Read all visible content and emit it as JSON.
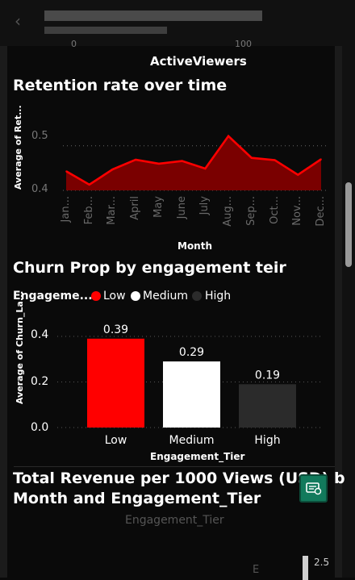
{
  "header": {
    "back_icon": "chevron-left-icon"
  },
  "top_chart": {
    "xlabel": "ActiveViewers",
    "partial_ticks": [
      "0",
      "100"
    ]
  },
  "retention": {
    "title": "Retention rate over time",
    "ylabel": "Average of Ret...",
    "xlabel": "Month",
    "y_ticks": [
      "0.4",
      "0.5"
    ],
    "months": [
      "Jan...",
      "Feb...",
      "Mar...",
      "April",
      "May",
      "June",
      "July",
      "Aug...",
      "Sep...",
      "Oct...",
      "Nov...",
      "Dec..."
    ],
    "values": [
      0.443,
      0.413,
      0.447,
      0.469,
      0.46,
      0.466,
      0.449,
      0.522,
      0.473,
      0.468,
      0.435,
      0.47
    ],
    "y_range": [
      0.4,
      0.525
    ],
    "color": "#ff0000"
  },
  "churn": {
    "title": "Churn Prop by engagement teir",
    "legend_title": "Engageme...",
    "legend": [
      {
        "label": "Low",
        "color": "#ff0000"
      },
      {
        "label": "Medium",
        "color": "#ffffff"
      },
      {
        "label": "High",
        "color": "#2b2b2b"
      }
    ],
    "ylabel": "Average of Churn_La...",
    "xlabel": "Engagement_Tier",
    "y_ticks": [
      "0.0",
      "0.2",
      "0.4"
    ],
    "categories": [
      "Low",
      "Medium",
      "High"
    ],
    "values": [
      0.39,
      0.29,
      0.19
    ],
    "value_labels": [
      "0.39",
      "0.29",
      "0.19"
    ]
  },
  "revenue": {
    "title_line1": "Total Revenue per 1000 Views (USD) b",
    "title_line2": "Month and Engagement_Tier",
    "legend_title": "Engagement_Tier",
    "partial_value": "2.5",
    "partial_letter": "E",
    "fab_icon": "smart-narrative-icon"
  },
  "chart_data": [
    {
      "type": "line",
      "title": "Retention rate over time",
      "xlabel": "Month",
      "ylabel": "Average of Ret...",
      "categories": [
        "Jan...",
        "Feb...",
        "Mar...",
        "April",
        "May",
        "June",
        "July",
        "Aug...",
        "Sep...",
        "Oct...",
        "Nov...",
        "Dec..."
      ],
      "values": [
        0.443,
        0.413,
        0.447,
        0.469,
        0.46,
        0.466,
        0.449,
        0.522,
        0.473,
        0.468,
        0.435,
        0.47
      ],
      "ylim": [
        0.4,
        0.525
      ],
      "grid": true
    },
    {
      "type": "bar",
      "title": "Churn Prop by engagement teir",
      "xlabel": "Engagement_Tier",
      "ylabel": "Average of Churn_La...",
      "categories": [
        "Low",
        "Medium",
        "High"
      ],
      "values": [
        0.39,
        0.29,
        0.19
      ],
      "ylim": [
        0,
        0.4
      ],
      "grid": true,
      "legend": "top-left"
    }
  ]
}
